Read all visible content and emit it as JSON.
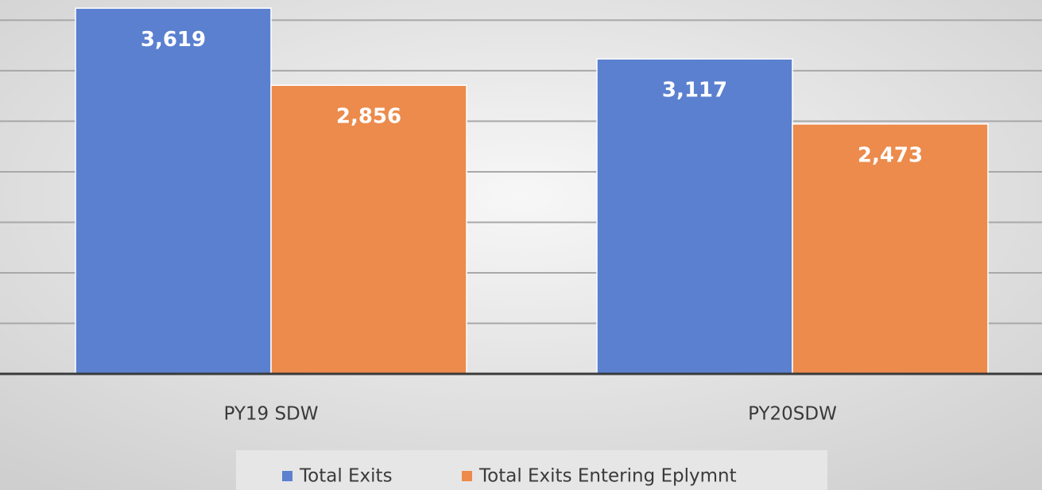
{
  "chart_data": {
    "type": "bar",
    "categories": [
      "PY19 SDW",
      "PY20SDW"
    ],
    "series": [
      {
        "name": "Total Exits",
        "color": "#5b80d0",
        "values": [
          3619,
          3117
        ],
        "value_labels": [
          "3,619",
          "3,117"
        ]
      },
      {
        "name": "Total Exits Entering Eplymnt",
        "color": "#ec8b4c",
        "values": [
          2856,
          2473
        ],
        "value_labels": [
          "2,856",
          "2,473"
        ]
      }
    ],
    "ylim": [
      0,
      3700
    ],
    "yticks": [
      0,
      500,
      1000,
      1500,
      2000,
      2500,
      3000,
      3500
    ],
    "grid": true,
    "legend": "bottom"
  }
}
